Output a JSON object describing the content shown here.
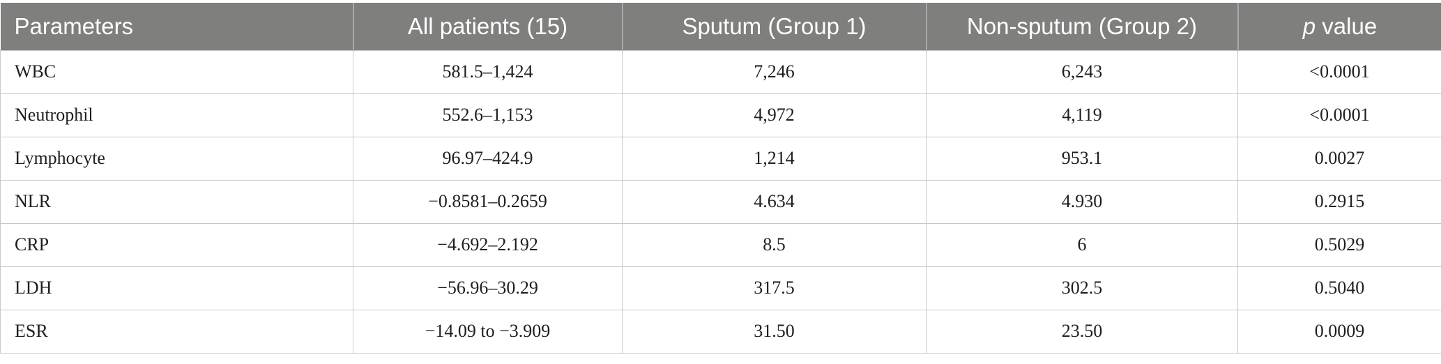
{
  "table": {
    "headers": [
      {
        "pre": "Parameters",
        "em": "",
        "post": ""
      },
      {
        "pre": "All patients (15)",
        "em": "",
        "post": ""
      },
      {
        "pre": "Sputum (Group 1)",
        "em": "",
        "post": ""
      },
      {
        "pre": "Non-sputum (Group 2)",
        "em": "",
        "post": ""
      },
      {
        "pre": "",
        "em": "p",
        "post": " value"
      }
    ],
    "rows": [
      [
        "WBC",
        "581.5–1,424",
        "7,246",
        "6,243",
        "<0.0001"
      ],
      [
        "Neutrophil",
        "552.6–1,153",
        "4,972",
        "4,119",
        "<0.0001"
      ],
      [
        "Lymphocyte",
        "96.97–424.9",
        "1,214",
        "953.1",
        "0.0027"
      ],
      [
        "NLR",
        "−0.8581–0.2659",
        "4.634",
        "4.930",
        "0.2915"
      ],
      [
        "CRP",
        "−4.692–2.192",
        "8.5",
        "6",
        "0.5029"
      ],
      [
        "LDH",
        "−56.96–30.29",
        "317.5",
        "302.5",
        "0.5040"
      ],
      [
        "ESR",
        "−14.09 to −3.909",
        "31.50",
        "23.50",
        "0.0009"
      ]
    ]
  },
  "colors": {
    "header_background": "#7f7f7e",
    "header_text": "#ffffff",
    "cell_text": "#1e1e1e",
    "grid_line": "#c8c8c8"
  }
}
